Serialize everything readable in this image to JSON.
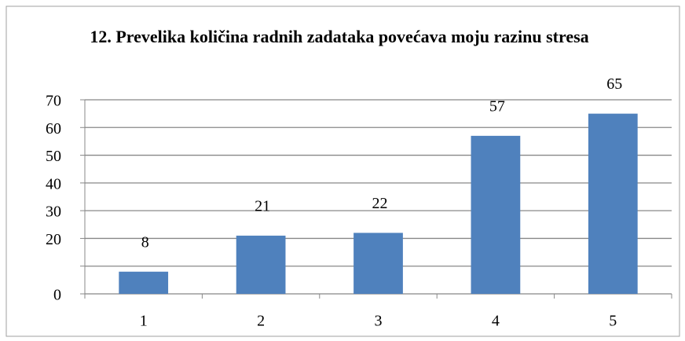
{
  "chart_data": {
    "type": "bar",
    "title": "12. Prevelika količina radnih zadataka povećava moju razinu stresa",
    "categories": [
      "1",
      "2",
      "3",
      "4",
      "5"
    ],
    "values": [
      8,
      21,
      22,
      57,
      65
    ],
    "color": "#4f81bd",
    "ylim": [
      0,
      70
    ],
    "yticks": [
      0,
      {
        "value": 10,
        "label": null
      },
      20,
      30,
      40,
      50,
      60,
      70
    ],
    "grid": true
  }
}
